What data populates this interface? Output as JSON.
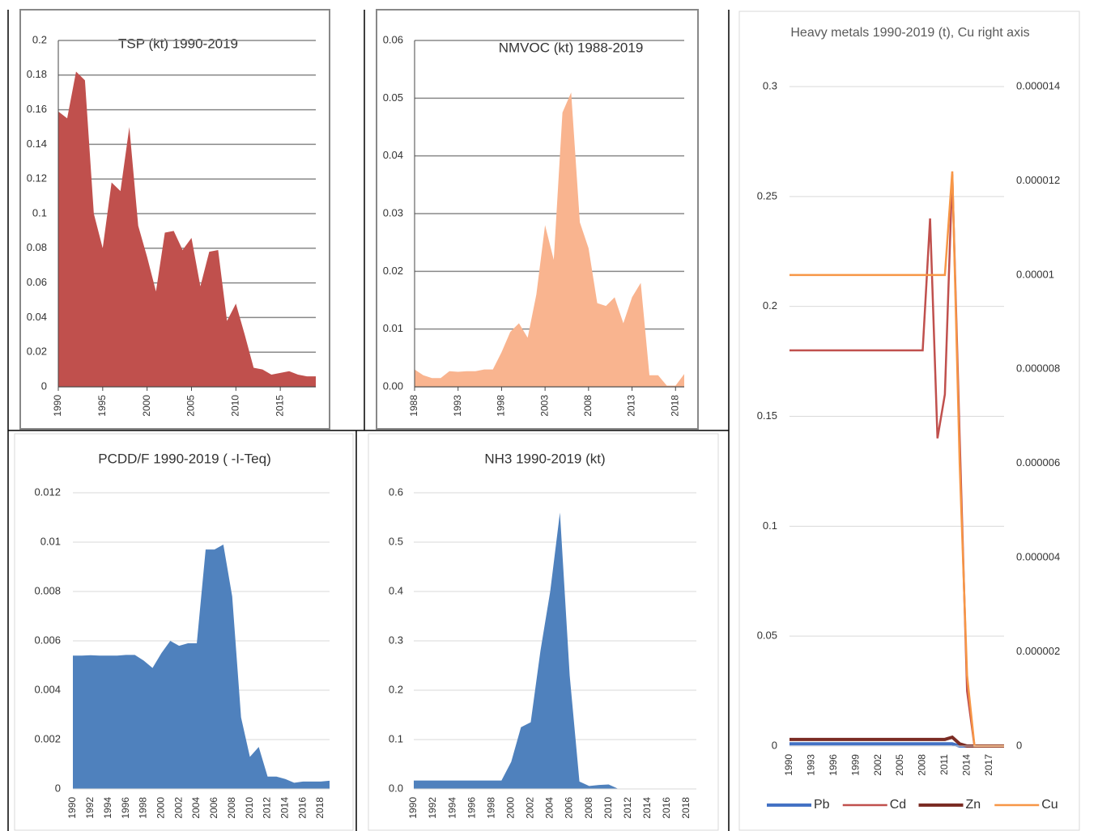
{
  "chart_data": [
    {
      "type": "area",
      "title": "TSP (kt) 1990-2019",
      "color": "#c0504d",
      "grid": true,
      "x": [
        1990,
        1991,
        1992,
        1993,
        1994,
        1995,
        1996,
        1997,
        1998,
        1999,
        2000,
        2001,
        2002,
        2003,
        2004,
        2005,
        2006,
        2007,
        2008,
        2009,
        2010,
        2011,
        2012,
        2013,
        2014,
        2015,
        2016,
        2017,
        2018,
        2019
      ],
      "values": [
        0.159,
        0.155,
        0.182,
        0.177,
        0.1,
        0.08,
        0.118,
        0.113,
        0.15,
        0.093,
        0.075,
        0.055,
        0.089,
        0.09,
        0.079,
        0.086,
        0.058,
        0.078,
        0.079,
        0.038,
        0.048,
        0.03,
        0.011,
        0.01,
        0.007,
        0.008,
        0.009,
        0.007,
        0.006,
        0.006
      ],
      "xlim": [
        1990,
        2019
      ],
      "xticks": [
        1990,
        1995,
        2000,
        2005,
        2010,
        2015
      ],
      "ylim": [
        0,
        0.2
      ],
      "yticks": [
        0,
        0.02,
        0.04,
        0.06,
        0.08,
        0.1,
        0.12,
        0.14,
        0.16,
        0.18,
        0.2
      ]
    },
    {
      "type": "area",
      "title": "NMVOC (kt) 1988-2019",
      "color": "#f9b48f",
      "grid": true,
      "x": [
        1988,
        1989,
        1990,
        1991,
        1992,
        1993,
        1994,
        1995,
        1996,
        1997,
        1998,
        1999,
        2000,
        2001,
        2002,
        2003,
        2004,
        2005,
        2006,
        2007,
        2008,
        2009,
        2010,
        2011,
        2012,
        2013,
        2014,
        2015,
        2016,
        2017,
        2018,
        2019
      ],
      "values": [
        0.003,
        0.002,
        0.0015,
        0.0015,
        0.0027,
        0.0026,
        0.0027,
        0.0027,
        0.003,
        0.003,
        0.006,
        0.0095,
        0.011,
        0.0085,
        0.016,
        0.028,
        0.022,
        0.0475,
        0.051,
        0.0285,
        0.024,
        0.0145,
        0.014,
        0.0155,
        0.011,
        0.0155,
        0.018,
        0.002,
        0.002,
        0.0002,
        0.0002,
        0.0022
      ],
      "xlim": [
        1988,
        2019
      ],
      "xticks": [
        1988,
        1993,
        1998,
        2003,
        2008,
        2013,
        2018
      ],
      "ylim": [
        0,
        0.06
      ],
      "yticks": [
        {
          "value": 0,
          "label": "0.00"
        },
        0.01,
        0.02,
        0.03,
        0.04,
        0.05,
        0.06
      ]
    },
    {
      "type": "area",
      "title": "PCDD/F 1990-2019 ( -I-Teq)",
      "color": "#4f81bd",
      "grid": true,
      "x": [
        1990,
        1991,
        1992,
        1993,
        1994,
        1995,
        1996,
        1997,
        1998,
        1999,
        2000,
        2001,
        2002,
        2003,
        2004,
        2005,
        2006,
        2007,
        2008,
        2009,
        2010,
        2011,
        2012,
        2013,
        2014,
        2015,
        2016,
        2017,
        2018,
        2019
      ],
      "values": [
        0.0054,
        0.0054,
        0.00542,
        0.0054,
        0.0054,
        0.0054,
        0.00543,
        0.00543,
        0.0052,
        0.0049,
        0.0055,
        0.006,
        0.0058,
        0.0059,
        0.0059,
        0.0097,
        0.0097,
        0.0099,
        0.0078,
        0.0029,
        0.0013,
        0.0017,
        0.0005,
        0.0005,
        0.0004,
        0.00025,
        0.0003,
        0.0003,
        0.0003,
        0.00033
      ],
      "xlim": [
        1990,
        2019
      ],
      "xticks": [
        1990,
        1992,
        1994,
        1996,
        1998,
        2000,
        2002,
        2004,
        2006,
        2008,
        2010,
        2012,
        2014,
        2016,
        2018
      ],
      "ylim": [
        0,
        0.012
      ],
      "yticks": [
        0,
        0.002,
        0.004,
        0.006,
        0.008,
        0.01,
        0.012
      ]
    },
    {
      "type": "area",
      "title": "NH3 1990-2019 (kt)",
      "color": "#4f81bd",
      "grid": true,
      "x": [
        1990,
        1991,
        1992,
        1993,
        1994,
        1995,
        1996,
        1997,
        1998,
        1999,
        2000,
        2001,
        2002,
        2003,
        2004,
        2005,
        2006,
        2007,
        2008,
        2009,
        2010,
        2011,
        2012,
        2013,
        2014,
        2015,
        2016,
        2017,
        2018,
        2019
      ],
      "values": [
        0.017,
        0.017,
        0.017,
        0.017,
        0.017,
        0.017,
        0.017,
        0.017,
        0.017,
        0.017,
        0.055,
        0.125,
        0.135,
        0.28,
        0.4,
        0.56,
        0.23,
        0.015,
        0.006,
        0.008,
        0.009,
        0,
        0,
        0,
        0,
        0,
        0,
        0,
        0,
        0
      ],
      "xlim": [
        1990,
        2019
      ],
      "xticks": [
        1990,
        1992,
        1994,
        1996,
        1998,
        2000,
        2002,
        2004,
        2006,
        2008,
        2010,
        2012,
        2014,
        2016,
        2018
      ],
      "ylim": [
        0,
        0.6
      ],
      "yticks": [
        {
          "value": 0,
          "label": "0.0"
        },
        0.1,
        0.2,
        0.3,
        0.4,
        0.5,
        0.6
      ]
    },
    {
      "type": "line",
      "title": "Heavy metals 1990-2019 (t), Cu right axis",
      "grid": true,
      "legend": "bottom",
      "x": [
        1990,
        1991,
        1992,
        1993,
        1994,
        1995,
        1996,
        1997,
        1998,
        1999,
        2000,
        2001,
        2002,
        2003,
        2004,
        2005,
        2006,
        2007,
        2008,
        2009,
        2010,
        2011,
        2012,
        2013,
        2014,
        2015,
        2016,
        2017,
        2018,
        2019
      ],
      "xlim": [
        1990,
        2019
      ],
      "xticks": [
        1990,
        1993,
        1996,
        1999,
        2002,
        2005,
        2008,
        2011,
        2014,
        2017
      ],
      "ylim": [
        0,
        0.3
      ],
      "yticks": [
        0,
        0.05,
        0.1,
        0.15,
        0.2,
        0.25,
        0.3
      ],
      "y2lim": [
        0,
        1.4e-05
      ],
      "y2ticks": [
        0,
        2e-06,
        4e-06,
        6e-06,
        8e-06,
        1e-05,
        1.2e-05,
        1.4e-05
      ],
      "series": [
        {
          "name": "Pb",
          "color": "#4472c4",
          "values": [
            0.001,
            0.001,
            0.001,
            0.001,
            0.001,
            0.001,
            0.001,
            0.001,
            0.001,
            0.001,
            0.001,
            0.001,
            0.001,
            0.001,
            0.001,
            0.001,
            0.001,
            0.001,
            0.001,
            0.001,
            0.001,
            0.001,
            0.001,
            0,
            0,
            0,
            0,
            0,
            0,
            0
          ]
        },
        {
          "name": "Cd",
          "color": "#c0504d",
          "values": [
            0.18,
            0.18,
            0.18,
            0.18,
            0.18,
            0.18,
            0.18,
            0.18,
            0.18,
            0.18,
            0.18,
            0.18,
            0.18,
            0.18,
            0.18,
            0.18,
            0.18,
            0.18,
            0.18,
            0.24,
            0.14,
            0.16,
            0.26,
            0.14,
            0.025,
            0,
            0,
            0,
            0,
            0
          ]
        },
        {
          "name": "Zn",
          "color": "#7b2c24",
          "values": [
            0.003,
            0.003,
            0.003,
            0.003,
            0.003,
            0.003,
            0.003,
            0.003,
            0.003,
            0.003,
            0.003,
            0.003,
            0.003,
            0.003,
            0.003,
            0.003,
            0.003,
            0.003,
            0.003,
            0.003,
            0.003,
            0.003,
            0.004,
            0.001,
            0,
            0,
            0,
            0,
            0,
            0
          ]
        },
        {
          "name": "Cu",
          "color": "#f79646",
          "axis": "y2",
          "values": [
            1e-05,
            1e-05,
            1e-05,
            1e-05,
            1e-05,
            1e-05,
            1e-05,
            1e-05,
            1e-05,
            1e-05,
            1e-05,
            1e-05,
            1e-05,
            1e-05,
            1e-05,
            1e-05,
            1e-05,
            1e-05,
            1e-05,
            1e-05,
            1e-05,
            1e-05,
            1.22e-05,
            6e-06,
            1.5e-06,
            0,
            0,
            0,
            0,
            0
          ]
        }
      ]
    }
  ]
}
